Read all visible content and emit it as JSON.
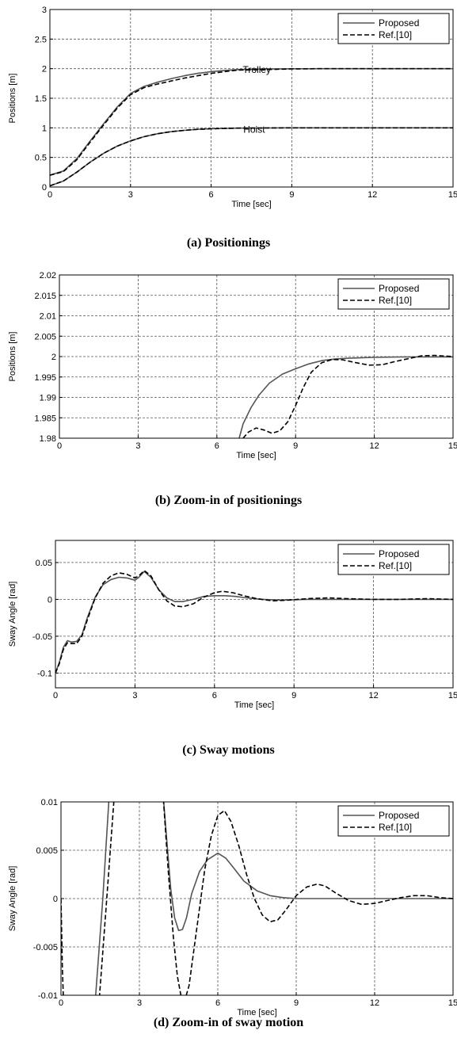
{
  "chart_data": [
    {
      "type": "line",
      "caption": "(a) Positionings",
      "xlabel": "Time [sec]",
      "ylabel": "Positions [m]",
      "xlim": [
        0,
        15
      ],
      "ylim": [
        0,
        3
      ],
      "xticks": [
        0,
        3,
        6,
        9,
        12,
        15
      ],
      "yticks": [
        0,
        0.5,
        1,
        1.5,
        2,
        2.5,
        3
      ],
      "xtick_labels": [
        "0",
        "3",
        "6",
        "9",
        "12",
        "15"
      ],
      "ytick_labels": [
        "0",
        "0.5",
        "1",
        "1.5",
        "2",
        "2.5",
        "3"
      ],
      "grid": true,
      "legend": "top-right",
      "annotations": [
        {
          "text": "Trolley",
          "x": 7.7,
          "y": 1.93
        },
        {
          "text": "Hoist",
          "x": 7.6,
          "y": 0.92
        }
      ],
      "series": [
        {
          "name": "Proposed",
          "color": "#555555",
          "dash": "solid",
          "curves": [
            {
              "x": [
                0,
                0.5,
                1,
                1.5,
                2,
                2.5,
                3,
                3.5,
                4,
                4.5,
                5,
                5.5,
                6,
                6.5,
                7,
                8,
                9,
                10,
                12,
                15
              ],
              "y": [
                0.2,
                0.27,
                0.48,
                0.78,
                1.07,
                1.35,
                1.58,
                1.7,
                1.77,
                1.83,
                1.88,
                1.92,
                1.95,
                1.97,
                1.985,
                1.995,
                1.998,
                1.999,
                2.0,
                2.0
              ]
            },
            {
              "x": [
                0,
                0.5,
                1,
                1.5,
                2,
                2.5,
                3,
                3.5,
                4,
                4.5,
                5,
                5.5,
                6,
                7,
                8,
                9,
                10,
                12,
                15
              ],
              "y": [
                0.02,
                0.1,
                0.25,
                0.42,
                0.57,
                0.69,
                0.78,
                0.85,
                0.9,
                0.935,
                0.958,
                0.975,
                0.985,
                0.995,
                0.998,
                1.0,
                1.0,
                1.0,
                1.0
              ]
            }
          ]
        },
        {
          "name": "Ref.[10]",
          "color": "#000000",
          "dash": "dashed",
          "curves": [
            {
              "x": [
                0,
                0.5,
                1,
                1.5,
                2,
                2.5,
                3,
                3.5,
                4,
                4.5,
                5,
                5.5,
                6,
                6.5,
                7,
                8,
                9,
                10,
                12,
                15
              ],
              "y": [
                0.2,
                0.26,
                0.46,
                0.76,
                1.05,
                1.33,
                1.56,
                1.68,
                1.74,
                1.79,
                1.84,
                1.88,
                1.92,
                1.95,
                1.975,
                1.985,
                1.995,
                1.999,
                2.0,
                2.0
              ]
            },
            {
              "x": [
                0,
                0.5,
                1,
                1.5,
                2,
                2.5,
                3,
                3.5,
                4,
                4.5,
                5,
                5.5,
                6,
                7,
                8,
                9,
                10,
                12,
                15
              ],
              "y": [
                0.02,
                0.1,
                0.25,
                0.42,
                0.57,
                0.69,
                0.78,
                0.85,
                0.9,
                0.935,
                0.958,
                0.975,
                0.985,
                0.995,
                0.998,
                1.0,
                1.0,
                1.0,
                1.0
              ]
            }
          ]
        }
      ]
    },
    {
      "type": "line",
      "caption": "(b) Zoom-in of positionings",
      "xlabel": "Time [sec]",
      "ylabel": "Positions [m]",
      "xlim": [
        0,
        15
      ],
      "ylim": [
        1.98,
        2.02
      ],
      "xticks": [
        0,
        3,
        6,
        9,
        12,
        15
      ],
      "yticks": [
        1.98,
        1.985,
        1.99,
        1.995,
        2.0,
        2.005,
        2.01,
        2.015,
        2.02
      ],
      "xtick_labels": [
        "0",
        "3",
        "6",
        "9",
        "12",
        "15"
      ],
      "ytick_labels": [
        "1.98",
        "1.985",
        "1.99",
        "1.995",
        "2",
        "2.005",
        "2.01",
        "2.015",
        "2.02"
      ],
      "grid": true,
      "legend": "top-right",
      "series": [
        {
          "name": "Proposed",
          "color": "#555555",
          "dash": "solid",
          "curves": [
            {
              "x": [
                6.85,
                7.0,
                7.3,
                7.6,
                8.0,
                8.5,
                9.0,
                9.5,
                10.0,
                10.5,
                11.0,
                12.0,
                13.0,
                15.0
              ],
              "y": [
                1.98,
                1.9835,
                1.9875,
                1.9905,
                1.9935,
                1.9957,
                1.997,
                1.9982,
                1.999,
                1.9994,
                1.9996,
                1.9998,
                1.9999,
                1.9999
              ]
            }
          ]
        },
        {
          "name": "Ref.[10]",
          "color": "#000000",
          "dash": "dashed",
          "curves": [
            {
              "x": [
                7.0,
                7.2,
                7.5,
                7.8,
                8.1,
                8.4,
                8.7,
                9.0,
                9.3,
                9.6,
                10.0,
                10.4,
                10.8,
                11.3,
                11.8,
                12.3,
                12.8,
                13.3,
                13.8,
                14.3,
                15.0
              ],
              "y": [
                1.98,
                1.9815,
                1.9825,
                1.982,
                1.9812,
                1.9818,
                1.984,
                1.988,
                1.9925,
                1.9962,
                1.9985,
                1.9993,
                1.9992,
                1.9985,
                1.9979,
                1.998,
                1.9988,
                1.9995,
                2.0002,
                2.0003,
                2.0
              ]
            }
          ]
        }
      ]
    },
    {
      "type": "line",
      "caption": "(c) Sway motions",
      "xlabel": "Time [sec]",
      "ylabel": "Sway Angle [rad]",
      "xlim": [
        0,
        15
      ],
      "ylim": [
        -0.12,
        0.08
      ],
      "xticks": [
        0,
        3,
        6,
        9,
        12,
        15
      ],
      "yticks": [
        -0.1,
        -0.05,
        0,
        0.05
      ],
      "xtick_labels": [
        "0",
        "3",
        "6",
        "9",
        "12",
        "15"
      ],
      "ytick_labels": [
        "-0.1",
        "-0.05",
        "0",
        "0.05"
      ],
      "grid": true,
      "legend": "top-right",
      "series": [
        {
          "name": "Proposed",
          "color": "#555555",
          "dash": "solid",
          "curves": [
            {
              "x": [
                0,
                0.15,
                0.3,
                0.45,
                0.6,
                0.8,
                1.0,
                1.2,
                1.5,
                1.8,
                2.1,
                2.4,
                2.7,
                3.0,
                3.15,
                3.35,
                3.6,
                3.9,
                4.2,
                4.5,
                4.8,
                5.2,
                5.6,
                6.0,
                6.4,
                6.8,
                7.2,
                7.8,
                8.5,
                9.5,
                11,
                13,
                15
              ],
              "y": [
                -0.1,
                -0.085,
                -0.065,
                -0.056,
                -0.058,
                -0.057,
                -0.048,
                -0.025,
                0.003,
                0.02,
                0.027,
                0.03,
                0.029,
                0.026,
                0.03,
                0.038,
                0.03,
                0.013,
                0.002,
                -0.003,
                -0.003,
                0.0,
                0.004,
                0.005,
                0.005,
                0.004,
                0.002,
                0.0,
                -0.001,
                0.0,
                0.0,
                0.0,
                0.0
              ]
            }
          ]
        },
        {
          "name": "Ref.[10]",
          "color": "#000000",
          "dash": "dashed",
          "curves": [
            {
              "x": [
                0,
                0.15,
                0.3,
                0.45,
                0.6,
                0.8,
                1.0,
                1.2,
                1.5,
                1.8,
                2.1,
                2.4,
                2.7,
                3.0,
                3.15,
                3.35,
                3.6,
                3.9,
                4.2,
                4.5,
                4.8,
                5.2,
                5.6,
                6.0,
                6.3,
                6.7,
                7.1,
                7.6,
                8.2,
                8.8,
                9.5,
                10.3,
                11,
                12,
                13,
                14,
                15
              ],
              "y": [
                -0.1,
                -0.087,
                -0.068,
                -0.059,
                -0.06,
                -0.06,
                -0.05,
                -0.028,
                0.002,
                0.022,
                0.032,
                0.036,
                0.034,
                0.029,
                0.032,
                0.039,
                0.032,
                0.013,
                -0.002,
                -0.009,
                -0.01,
                -0.006,
                0.003,
                0.009,
                0.011,
                0.009,
                0.005,
                0.001,
                -0.002,
                -0.001,
                0.001,
                0.002,
                0.001,
                0.0,
                0.0,
                0.001,
                0.0
              ]
            }
          ]
        }
      ]
    },
    {
      "type": "line",
      "caption": "(d) Zoom-in of sway motion",
      "xlabel": "Time [sec]",
      "ylabel": "Sway Angle [rad]",
      "xlim": [
        0,
        15
      ],
      "ylim": [
        -0.01,
        0.01
      ],
      "xticks": [
        0,
        3,
        6,
        9,
        12,
        15
      ],
      "yticks": [
        -0.01,
        -0.005,
        0,
        0.005,
        0.01
      ],
      "xtick_labels": [
        "0",
        "3",
        "6",
        "9",
        "12",
        "15"
      ],
      "ytick_labels": [
        "-0.01",
        "-0.005",
        "0",
        "0.005",
        "0.01"
      ],
      "grid": true,
      "legend": "top-right",
      "series": [
        {
          "name": "Proposed",
          "color": "#555555",
          "dash": "solid",
          "curves": [
            {
              "x": [
                1.3,
                1.6,
                1.85
              ],
              "y": [
                -0.011,
                0.0,
                0.011
              ]
            },
            {
              "x": [
                3.9,
                4.05,
                4.2,
                4.35,
                4.5,
                4.65,
                4.8,
                5.0,
                5.3,
                5.6,
                6.0,
                6.3,
                6.6,
                7.0,
                7.5,
                8.0,
                8.5,
                9.0,
                10.0,
                11.0,
                12.0,
                13.0,
                15.0
              ],
              "y": [
                0.011,
                0.006,
                0.001,
                -0.002,
                -0.0033,
                -0.0032,
                -0.002,
                0.0005,
                0.0028,
                0.004,
                0.0047,
                0.0042,
                0.0032,
                0.0018,
                0.0008,
                0.0003,
                0.0001,
                0.0,
                0.0,
                0.0,
                0.0,
                0.0,
                0.0
              ]
            }
          ]
        },
        {
          "name": "Ref.[10]",
          "color": "#000000",
          "dash": "dashed",
          "curves": [
            {
              "x": [
                0,
                0.05,
                0.1
              ],
              "y": [
                0.0,
                -0.007,
                -0.011
              ]
            },
            {
              "x": [
                1.45,
                1.75,
                2.05
              ],
              "y": [
                -0.011,
                0.0,
                0.011
              ]
            },
            {
              "x": [
                3.9,
                4.1,
                4.3,
                4.45,
                4.6,
                4.75,
                4.9,
                5.1,
                5.3,
                5.5,
                5.75,
                6.0,
                6.25,
                6.5,
                6.8,
                7.1,
                7.4,
                7.7,
                8.0,
                8.3,
                8.6,
                9.0,
                9.4,
                9.8,
                10.1,
                10.5,
                11.0,
                11.5,
                12.0,
                12.5,
                13.0,
                13.5,
                14.0,
                14.5,
                15.0
              ],
              "y": [
                0.011,
                0.003,
                -0.004,
                -0.008,
                -0.0102,
                -0.0104,
                -0.009,
                -0.005,
                -0.001,
                0.003,
                0.0065,
                0.0086,
                0.0091,
                0.008,
                0.0055,
                0.0025,
                0.0,
                -0.0017,
                -0.0024,
                -0.0022,
                -0.0012,
                0.0003,
                0.0012,
                0.0015,
                0.0013,
                0.0006,
                -0.0002,
                -0.0006,
                -0.0005,
                -0.0002,
                0.0001,
                0.0003,
                0.0003,
                0.0001,
                0.0
              ]
            }
          ]
        }
      ]
    }
  ]
}
